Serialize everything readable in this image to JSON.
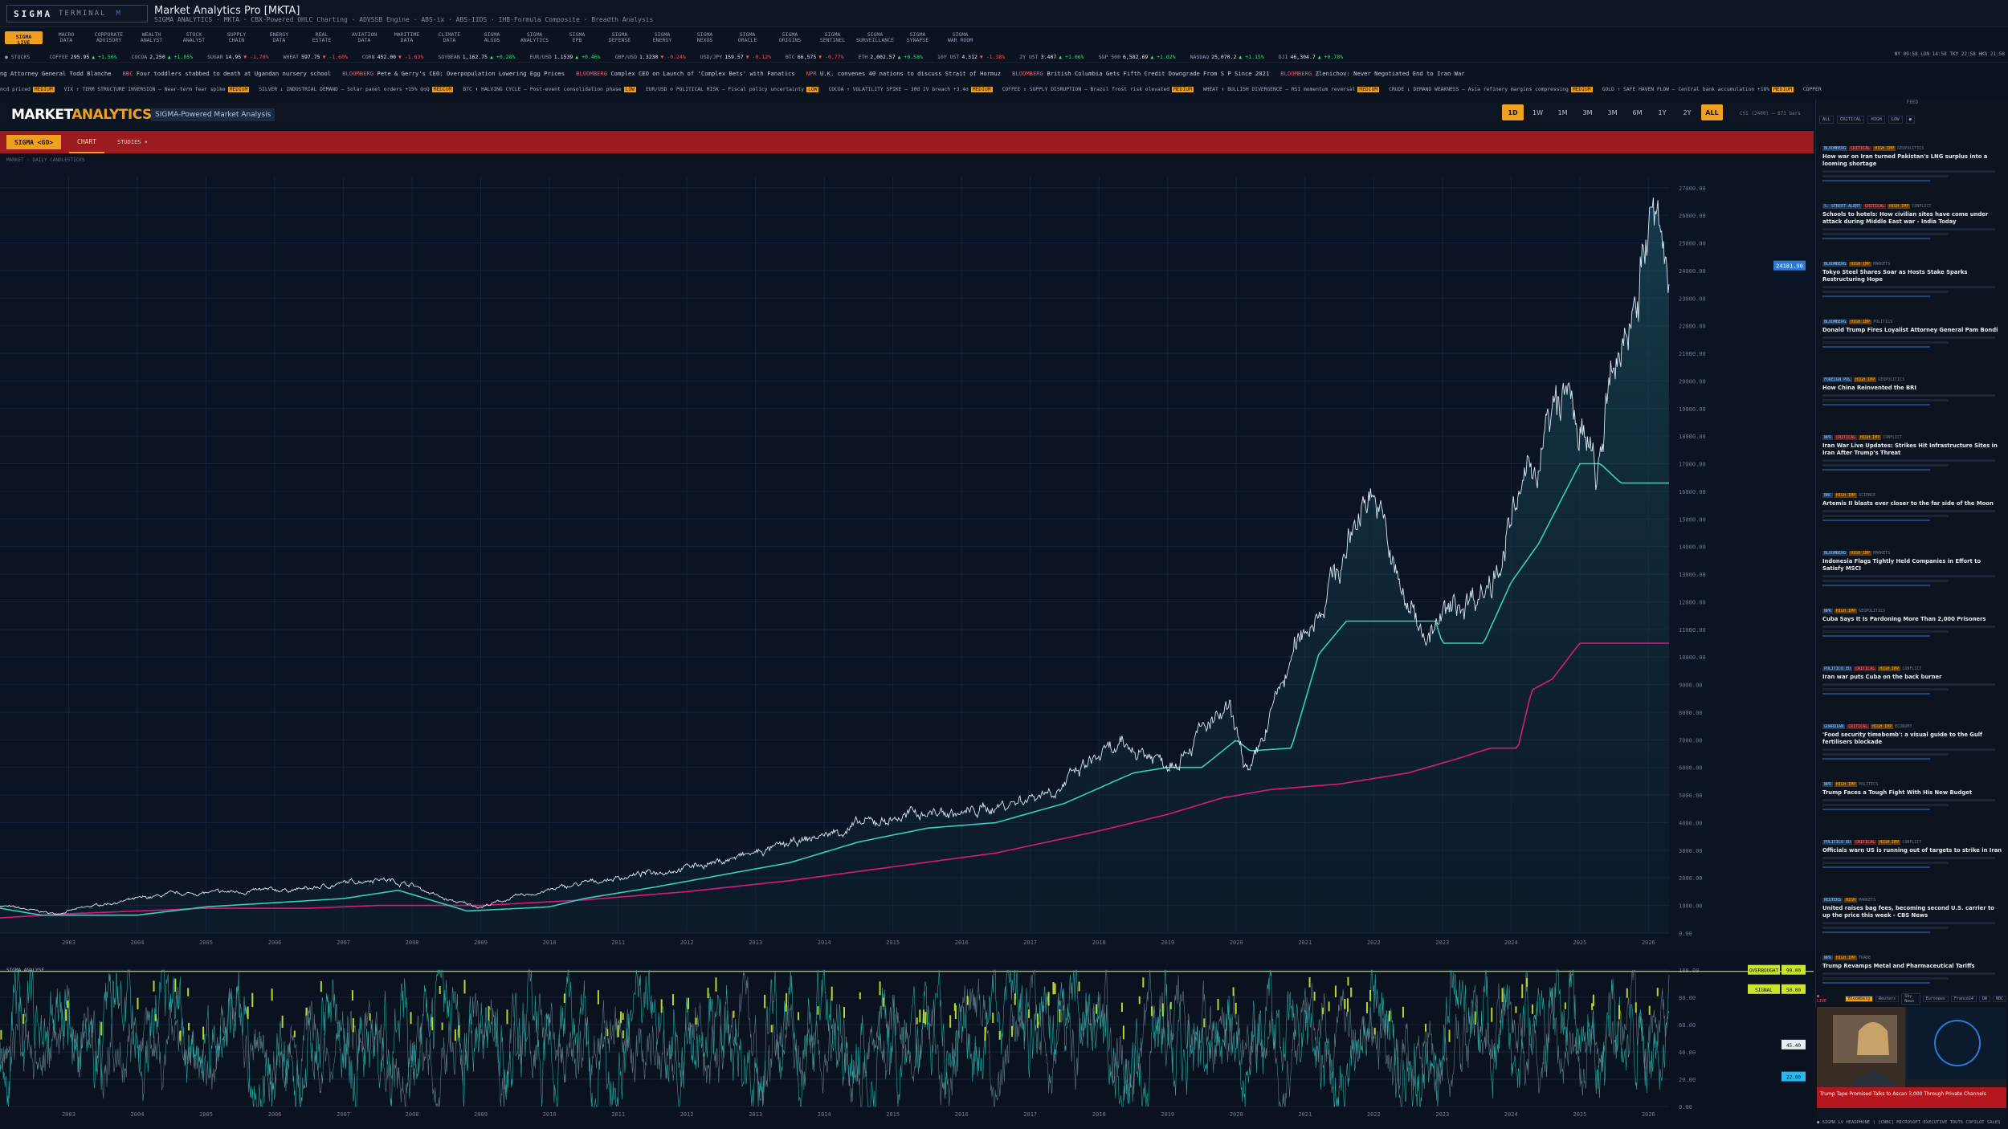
{
  "header": {
    "logo_main": "SIGMA",
    "logo_sub": "TERMINAL",
    "logo_mark": "M",
    "title": "Market Analytics Pro [MKTA]",
    "subtitle": "SIGMA ANALYTICS · MKTA · CBX-Powered OHLC Charting · ADVSSB Engine · ABS-ix · ABS-IIDS · IHB-Formula Composite · Breadth Analysis"
  },
  "nav": [
    {
      "label": "SIGMA\nLIVE",
      "active": true
    },
    {
      "label": "MACRO\nDATA"
    },
    {
      "label": "CORPORATE\nADVISORY"
    },
    {
      "label": "WEALTH\nANALYST"
    },
    {
      "label": "STOCK\nANALYST"
    },
    {
      "label": "SUPPLY\nCHAIN"
    },
    {
      "label": "ENERGY\nDATA"
    },
    {
      "label": "REAL\nESTATE"
    },
    {
      "label": "AVIATION\nDATA"
    },
    {
      "label": "MARITIME\nDATA"
    },
    {
      "label": "CLIMATE\nDATA"
    },
    {
      "label": "SIGMA\nALGOS"
    },
    {
      "label": "SIGMA\nANALYTICS"
    },
    {
      "label": "SIGMA\nEPB"
    },
    {
      "label": "SIGMA\nDEFENSE"
    },
    {
      "label": "SIGMA\nENERGY"
    },
    {
      "label": "SIGMA\nNEXUS"
    },
    {
      "label": "SIGMA\nORACLE"
    },
    {
      "label": "SIGMA\nORIGINS"
    },
    {
      "label": "SIGMA\nSENTINEL"
    },
    {
      "label": "SIGMA\nSURVEILLANCE"
    },
    {
      "label": "SIGMA\nSYNAPSE"
    },
    {
      "label": "SIGMA\nWAR ROOM"
    }
  ],
  "ticker": [
    {
      "sym": "● STOCKS",
      "px": "",
      "chg": "",
      "dir": "up"
    },
    {
      "sym": "COFFEE",
      "px": "295.95",
      "chg": "▲ +1.50%",
      "dir": "up"
    },
    {
      "sym": "COCOA",
      "px": "2,250",
      "chg": "▲ +1.05%",
      "dir": "up"
    },
    {
      "sym": "SUGAR",
      "px": "14.95",
      "chg": "▼ -1.70%",
      "dir": "dn"
    },
    {
      "sym": "WHEAT",
      "px": "597.75",
      "chg": "▼ -1.60%",
      "dir": "dn"
    },
    {
      "sym": "CORN",
      "px": "452.00",
      "chg": "▼ -1.63%",
      "dir": "dn"
    },
    {
      "sym": "SOYBEAN",
      "px": "1,162.75",
      "chg": "▲ +0.28%",
      "dir": "up"
    },
    {
      "sym": "EUR/USD",
      "px": "1.1539",
      "chg": "▲ +0.46%",
      "dir": "up"
    },
    {
      "sym": "GBP/USD",
      "px": "1.3230",
      "chg": "▼ -0.24%",
      "dir": "dn"
    },
    {
      "sym": "USD/JPY",
      "px": "159.57",
      "chg": "▼ -0.12%",
      "dir": "dn"
    },
    {
      "sym": "BTC",
      "px": "66,575",
      "chg": "▼ -0.77%",
      "dir": "dn"
    },
    {
      "sym": "ETH",
      "px": "2,002.57",
      "chg": "▲ +0.58%",
      "dir": "up"
    },
    {
      "sym": "10Y UST",
      "px": "4.312",
      "chg": "▼ -1.38%",
      "dir": "dn"
    },
    {
      "sym": "2Y UST",
      "px": "3.407",
      "chg": "▲ +1.06%",
      "dir": "up"
    },
    {
      "sym": "S&P 500",
      "px": "6,582.69",
      "chg": "▲ +1.02%",
      "dir": "up"
    },
    {
      "sym": "NASDAQ",
      "px": "25,070.2",
      "chg": "▲ +1.15%",
      "dir": "up"
    },
    {
      "sym": "DJI",
      "px": "46,304.7",
      "chg": "▲ +0.78%",
      "dir": "up"
    }
  ],
  "clocks": "NY 09:58   LDN 14:58   TKY 22:58   HKG 21:58",
  "news": [
    {
      "src": "",
      "text": "ng Attorney General Todd Blanche"
    },
    {
      "src": "BBC",
      "text": "Four toddlers stabbed to death at Ugandan nursery school"
    },
    {
      "src": "BLOOMBERG",
      "text": "Pete & Gerry's CEO: Overpopulation Lowering Egg Prices"
    },
    {
      "src": "BLOOMBERG",
      "text": "Complex CEO on Launch of 'Complex Bets' with Fanatics"
    },
    {
      "src": "NPR",
      "text": "U.K. convenes 40 nations to discuss Strait of Hormuz"
    },
    {
      "src": "BLOOMBERG",
      "text": "British Columbia Gets Fifth Credit Downgrade From S P Since 2021"
    },
    {
      "src": "BLOOMBERG",
      "text": "Zlenichov: Never Negotiated End to Iran War"
    }
  ],
  "signals": [
    {
      "text": "ncd priced",
      "lvl": "MEDIUM"
    },
    {
      "text": "VIX ↑ TERM STRUCTURE INVERSION — Near-term fear spike",
      "lvl": "MEDIUM"
    },
    {
      "text": "SILVER ↓ INDUSTRIAL DEMAND — Solar panel orders +15% QoQ",
      "lvl": "MEDIUM"
    },
    {
      "text": "BTC ⬆ HALVING CYCLE — Post-event consolidation phase",
      "lvl": "LOW"
    },
    {
      "text": "EUR/USD ⊘ POLITICAL RISK — Fiscal policy uncertainty",
      "lvl": "LOW"
    },
    {
      "text": "COCOA ↑ VOLATILITY SPIKE — 30d IV breach +3.4σ",
      "lvl": "MEDIUM"
    },
    {
      "text": "COFFEE ↕ SUPPLY DISRUPTION — Brazil frost risk elevated",
      "lvl": "MEDIUM"
    },
    {
      "text": "WHEAT ⬆ BULLISH DIVERGENCE — RSI momentum reversal",
      "lvl": "MEDIUM"
    },
    {
      "text": "CRUDE ↓ DEMAND WEAKNESS — Asia refinery margins compressing",
      "lvl": "MEDIUM"
    },
    {
      "text": "GOLD ↑ SAFE HAVEN FLOW — Central bank accumulation +18%",
      "lvl": "MEDIUM"
    },
    {
      "text": "COPPER",
      "lvl": ""
    }
  ],
  "brand": {
    "a": "MARKET",
    "b": "ANALYTICS PRO",
    "tag": "SIGMA-Powered Market Analysis"
  },
  "ranges": [
    {
      "l": "1D",
      "on": true
    },
    {
      "l": "1W"
    },
    {
      "l": "1M"
    },
    {
      "l": "3M"
    },
    {
      "l": "3M"
    },
    {
      "l": "6M"
    },
    {
      "l": "1Y"
    },
    {
      "l": "2Y"
    },
    {
      "l": "ALL",
      "on": true
    }
  ],
  "range_note": "CSI (2400) — 873 bars",
  "toolbar": {
    "go": "SIGMA <GO>",
    "chart": "CHART",
    "studies": "STUDIES ▾"
  },
  "crumb": "MARKET · DAILY CANDLESTICKS",
  "chart_data": {
    "type": "line",
    "x_years": [
      2003,
      2004,
      2005,
      2006,
      2007,
      2008,
      2009,
      2010,
      2011,
      2012,
      2013,
      2014,
      2015,
      2016,
      2017,
      2018,
      2019,
      2020,
      2021,
      2022,
      2023,
      2024,
      2025,
      2026
    ],
    "y_ticks": [
      0,
      1000,
      2000,
      3000,
      4000,
      5000,
      6000,
      7000,
      8000,
      9000,
      10000,
      11000,
      12000,
      13000,
      14000,
      15000,
      16000,
      17000,
      18000,
      19000,
      20000,
      21000,
      22000,
      23000,
      24000,
      25000,
      26000,
      27000
    ],
    "price_anchors": [
      [
        2002.0,
        1000
      ],
      [
        2002.8,
        700
      ],
      [
        2003.5,
        1050
      ],
      [
        2004.5,
        1400
      ],
      [
        2005.5,
        1500
      ],
      [
        2006.5,
        1600
      ],
      [
        2007.5,
        2000
      ],
      [
        2008.0,
        1750
      ],
      [
        2008.5,
        1200
      ],
      [
        2009.0,
        950
      ],
      [
        2009.5,
        1300
      ],
      [
        2010.5,
        1800
      ],
      [
        2011.5,
        2200
      ],
      [
        2012.5,
        2600
      ],
      [
        2013.5,
        3200
      ],
      [
        2014.5,
        3900
      ],
      [
        2015.5,
        4400
      ],
      [
        2016.0,
        4300
      ],
      [
        2016.7,
        4700
      ],
      [
        2017.5,
        5400
      ],
      [
        2018.0,
        6400
      ],
      [
        2018.5,
        6700
      ],
      [
        2019.0,
        6200
      ],
      [
        2019.5,
        7300
      ],
      [
        2019.9,
        7900
      ],
      [
        2020.2,
        5600
      ],
      [
        2020.6,
        8600
      ],
      [
        2021.0,
        11000
      ],
      [
        2021.5,
        13200
      ],
      [
        2021.95,
        16400
      ],
      [
        2022.4,
        12200
      ],
      [
        2022.8,
        10800
      ],
      [
        2023.2,
        11800
      ],
      [
        2023.7,
        12800
      ],
      [
        2024.0,
        14800
      ],
      [
        2024.5,
        18000
      ],
      [
        2024.8,
        19500
      ],
      [
        2025.25,
        16500
      ],
      [
        2025.5,
        20200
      ],
      [
        2025.9,
        24200
      ],
      [
        2026.05,
        26000
      ],
      [
        2026.3,
        23500
      ]
    ],
    "trail_anchors": [
      [
        2002.0,
        900
      ],
      [
        2002.6,
        650
      ],
      [
        2004.0,
        650
      ],
      [
        2005.0,
        950
      ],
      [
        2006.0,
        1100
      ],
      [
        2007.0,
        1250
      ],
      [
        2007.8,
        1550
      ],
      [
        2008.8,
        800
      ],
      [
        2010.0,
        950
      ],
      [
        2010.5,
        1250
      ],
      [
        2011.5,
        1650
      ],
      [
        2012.5,
        2100
      ],
      [
        2013.5,
        2550
      ],
      [
        2014.5,
        3300
      ],
      [
        2015.5,
        3800
      ],
      [
        2016.5,
        4000
      ],
      [
        2017.5,
        4700
      ],
      [
        2018.5,
        5800
      ],
      [
        2019.0,
        6000
      ],
      [
        2019.5,
        6000
      ],
      [
        2020.0,
        7000
      ],
      [
        2020.2,
        6600
      ],
      [
        2020.8,
        6700
      ],
      [
        2021.2,
        10100
      ],
      [
        2021.6,
        11300
      ],
      [
        2022.2,
        11300
      ],
      [
        2022.9,
        11300
      ],
      [
        2023.0,
        10500
      ],
      [
        2023.6,
        10500
      ],
      [
        2024.0,
        12700
      ],
      [
        2024.4,
        14100
      ],
      [
        2025.0,
        17000
      ],
      [
        2025.3,
        17000
      ],
      [
        2025.6,
        16300
      ],
      [
        2026.3,
        16300
      ]
    ],
    "floor_anchors": [
      [
        2002.0,
        550
      ],
      [
        2003.0,
        700
      ],
      [
        2005.0,
        900
      ],
      [
        2006.5,
        900
      ],
      [
        2007.5,
        1000
      ],
      [
        2009.0,
        1000
      ],
      [
        2010.5,
        1200
      ],
      [
        2012.0,
        1500
      ],
      [
        2013.5,
        1900
      ],
      [
        2015.0,
        2400
      ],
      [
        2016.5,
        2900
      ],
      [
        2018.0,
        3700
      ],
      [
        2019.0,
        4300
      ],
      [
        2019.8,
        4900
      ],
      [
        2020.5,
        5200
      ],
      [
        2021.5,
        5400
      ],
      [
        2022.5,
        5800
      ],
      [
        2023.2,
        6300
      ],
      [
        2023.7,
        6700
      ],
      [
        2024.1,
        6700
      ],
      [
        2024.3,
        8800
      ],
      [
        2024.6,
        9200
      ],
      [
        2025.0,
        10500
      ],
      [
        2026.3,
        10500
      ]
    ],
    "price_label": "24181.90",
    "osc": {
      "label": "SIGMA ANALYSE",
      "overbought": "OVERBOUGHT",
      "overbought_val": "99.00",
      "signal": "SIGNAL",
      "signal_val": "50.00",
      "y_ticks": [
        0,
        20,
        40,
        60,
        80,
        100
      ],
      "markers": [
        "45.40",
        "22.00"
      ]
    }
  },
  "panel": {
    "head": "FEED",
    "filters": [
      "ALL",
      "CRITICAL",
      "HIGH",
      "LOW",
      "●"
    ],
    "cards": [
      {
        "src": "BLOOMBERG",
        "crit": "CRITICAL",
        "imp": "HIGH IMP",
        "cat": "GEOPOLITICS",
        "title": "How war on Iran turned Pakistan's LNG surplus into a looming shortage"
      },
      {
        "src": "S. STREET ALERT",
        "crit": "CRITICAL",
        "imp": "HIGH IMP",
        "cat": "CONFLICT",
        "title": "Schools to hotels: How civilian sites have come under attack during Middle East war - India Today"
      },
      {
        "src": "BLOOMBERG",
        "crit": "",
        "imp": "HIGH IMP",
        "cat": "MARKETS",
        "title": "Tokyo Steel Shares Soar as Hosts Stake Sparks Restructuring Hope"
      },
      {
        "src": "BLOOMBERG",
        "crit": "",
        "imp": "HIGH IMP",
        "cat": "POLITICS",
        "title": "Donald Trump Fires Loyalist Attorney General Pam Bondi"
      },
      {
        "src": "FOREIGN POL",
        "crit": "",
        "imp": "HIGH IMP",
        "cat": "GEOPOLITICS",
        "title": "How China Reinvented the BRI"
      },
      {
        "src": "NPR",
        "crit": "CRITICAL",
        "imp": "HIGH IMP",
        "cat": "CONFLICT",
        "title": "Iran War Live Updates: Strikes Hit Infrastructure Sites in Iran After Trump's Threat"
      },
      {
        "src": "BBC",
        "crit": "",
        "imp": "HIGH IMP",
        "cat": "SCIENCE",
        "title": "Artemis II blasts ever closer to the far side of the Moon"
      },
      {
        "src": "BLOOMBERG",
        "crit": "",
        "imp": "HIGH IMP",
        "cat": "MARKETS",
        "title": "Indonesia Flags Tightly Held Companies in Effort to Satisfy MSCI"
      },
      {
        "src": "NPR",
        "crit": "",
        "imp": "HIGH IMP",
        "cat": "GEOPOLITICS",
        "title": "Cuba Says It Is Pardoning More Than 2,000 Prisoners"
      },
      {
        "src": "POLITICO EU",
        "crit": "CRITICAL",
        "imp": "HIGH IMP",
        "cat": "CONFLICT",
        "title": "Iran war puts Cuba on the back burner"
      },
      {
        "src": "GUARDIAN",
        "crit": "CRITICAL",
        "imp": "HIGH IMP",
        "cat": "ECONOMY",
        "title": "'Food security timebomb': a visual guide to the Gulf fertilisers blockade"
      },
      {
        "src": "NPR",
        "crit": "",
        "imp": "HIGH IMP",
        "cat": "POLITICS",
        "title": "Trump Faces a Tough Fight With His New Budget"
      },
      {
        "src": "POLITICO EU",
        "crit": "CRITICAL",
        "imp": "HIGH IMP",
        "cat": "CONFLICT",
        "title": "Officials warn US is running out of targets to strike in Iran"
      },
      {
        "src": "REUTERS",
        "crit": "",
        "imp": "HIGH",
        "cat": "MARKETS",
        "title": "United raises bag fees, becoming second U.S. carrier to up the price this week - CBS News"
      },
      {
        "src": "NPR",
        "crit": "",
        "imp": "HIGH IMP",
        "cat": "TRADE",
        "title": "Trump Revamps Metal and Pharmaceutical Tariffs"
      }
    ]
  },
  "video": {
    "live": "● LIVE",
    "tabs": [
      "Bloomberg",
      "Reuters",
      "Sky News",
      "Euronews",
      "France24",
      "DW",
      "NBC"
    ],
    "caption": "Trump Tape Promised Talks to Ascan 3,000 Through Private Channels",
    "crawl": "● SIGMA  LV HEADPHONE  |  [CNBC] MICROSOFT EXECUTIVE TOUTS COPILOT SALES"
  }
}
